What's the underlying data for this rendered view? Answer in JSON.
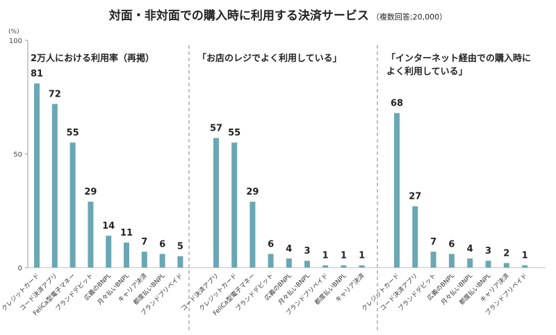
{
  "title": "対面・非対面での購入時に利用する決済サービス",
  "subtitle": "（複数回答;20,000）",
  "unit_label": "(%)",
  "chart_data": [
    {
      "type": "bar",
      "title": "2万人における利用率（再掲）",
      "categories": [
        "クレジットカード",
        "コード決済アプリ",
        "FeliCa型電子マネー",
        "ブランドデビット",
        "広義のBNPL",
        "月々払いBNPL",
        "キャリア決済",
        "都度払いBNPL",
        "ブランドプリペイド"
      ],
      "values": [
        81,
        72,
        55,
        29,
        14,
        11,
        7,
        6,
        5
      ],
      "yticks": [
        0,
        50,
        100
      ],
      "ylim": [
        0,
        100
      ]
    },
    {
      "type": "bar",
      "title": "「お店のレジでよく利用している」",
      "categories": [
        "コード決済アプリ",
        "クレジットカード",
        "FeliCa型電子マネー",
        "ブランドデビット",
        "広義のBNPL",
        "月々払いBNPL",
        "ブランドプリペイド",
        "都度払いBNPL",
        "キャリア決済"
      ],
      "values": [
        57,
        55,
        29,
        6,
        4,
        3,
        1,
        1,
        1
      ],
      "ylim": [
        0,
        100
      ]
    },
    {
      "type": "bar",
      "title_lines": [
        "「インターネット経由での購入時に",
        "よく利用している」"
      ],
      "categories": [
        "クレジットカード",
        "コード決済アプリ",
        "ブランドデビット",
        "広義のBNPL",
        "月々払いBNPL",
        "都度払いBNPL",
        "キャリア決済",
        "ブランドプリペイド"
      ],
      "values": [
        68,
        27,
        7,
        6,
        4,
        3,
        2,
        1
      ],
      "ylim": [
        0,
        100
      ]
    }
  ]
}
